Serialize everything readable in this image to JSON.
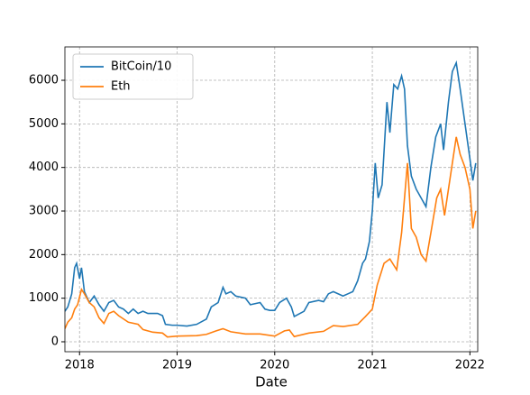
{
  "chart_data": {
    "type": "line",
    "x_label": "Date",
    "grid": true,
    "legend": "upper left",
    "xlim": [
      2017.85,
      2022.08
    ],
    "xticks": [
      2018,
      2019,
      2020,
      2021,
      2022
    ],
    "ylim": [
      -228,
      6766
    ],
    "yticks": [
      0,
      1000,
      2000,
      3000,
      4000,
      5000,
      6000
    ],
    "series": [
      {
        "name": "BitCoin/10",
        "color": "#1f77b4",
        "x": [
          2017.85,
          2017.88,
          2017.92,
          2017.95,
          2017.97,
          2018.0,
          2018.02,
          2018.05,
          2018.1,
          2018.15,
          2018.2,
          2018.25,
          2018.3,
          2018.35,
          2018.4,
          2018.45,
          2018.5,
          2018.55,
          2018.6,
          2018.65,
          2018.7,
          2018.8,
          2018.85,
          2018.88,
          2018.95,
          2019.0,
          2019.1,
          2019.2,
          2019.3,
          2019.35,
          2019.42,
          2019.47,
          2019.5,
          2019.55,
          2019.6,
          2019.7,
          2019.75,
          2019.85,
          2019.9,
          2019.95,
          2020.0,
          2020.05,
          2020.12,
          2020.17,
          2020.2,
          2020.3,
          2020.35,
          2020.45,
          2020.5,
          2020.55,
          2020.6,
          2020.7,
          2020.75,
          2020.8,
          2020.85,
          2020.9,
          2020.93,
          2020.97,
          2021.0,
          2021.03,
          2021.06,
          2021.1,
          2021.15,
          2021.18,
          2021.22,
          2021.26,
          2021.3,
          2021.33,
          2021.36,
          2021.4,
          2021.45,
          2021.5,
          2021.55,
          2021.6,
          2021.65,
          2021.7,
          2021.73,
          2021.78,
          2021.82,
          2021.86,
          2021.9,
          2021.95,
          2022.0,
          2022.03,
          2022.06
        ],
        "values": [
          700,
          800,
          1100,
          1700,
          1800,
          1450,
          1700,
          1150,
          900,
          1050,
          850,
          700,
          900,
          950,
          800,
          750,
          650,
          750,
          650,
          700,
          650,
          650,
          600,
          400,
          380,
          380,
          360,
          400,
          520,
          800,
          900,
          1250,
          1100,
          1150,
          1050,
          1000,
          850,
          900,
          750,
          720,
          720,
          900,
          1000,
          800,
          580,
          700,
          900,
          950,
          920,
          1100,
          1150,
          1050,
          1100,
          1150,
          1400,
          1800,
          1900,
          2300,
          3000,
          4100,
          3300,
          3600,
          5500,
          4800,
          5900,
          5800,
          6100,
          5800,
          4500,
          3800,
          3500,
          3300,
          3100,
          4000,
          4700,
          5000,
          4400,
          5500,
          6200,
          6400,
          5800,
          5000,
          4200,
          3700,
          4100
        ]
      },
      {
        "name": "Eth",
        "color": "#ff7f0e",
        "x": [
          2017.85,
          2017.88,
          2017.92,
          2017.95,
          2017.98,
          2018.02,
          2018.05,
          2018.1,
          2018.15,
          2018.2,
          2018.25,
          2018.3,
          2018.35,
          2018.4,
          2018.5,
          2018.6,
          2018.65,
          2018.75,
          2018.85,
          2018.9,
          2019.0,
          2019.2,
          2019.3,
          2019.4,
          2019.47,
          2019.55,
          2019.7,
          2019.85,
          2020.0,
          2020.1,
          2020.15,
          2020.2,
          2020.35,
          2020.5,
          2020.6,
          2020.7,
          2020.85,
          2020.93,
          2021.0,
          2021.05,
          2021.12,
          2021.18,
          2021.25,
          2021.3,
          2021.36,
          2021.4,
          2021.45,
          2021.5,
          2021.55,
          2021.6,
          2021.66,
          2021.7,
          2021.74,
          2021.8,
          2021.86,
          2021.9,
          2021.95,
          2022.0,
          2022.03,
          2022.06
        ],
        "values": [
          300,
          450,
          550,
          750,
          850,
          1200,
          1100,
          900,
          800,
          550,
          420,
          650,
          700,
          600,
          450,
          400,
          280,
          220,
          200,
          110,
          130,
          140,
          170,
          250,
          300,
          230,
          180,
          180,
          130,
          250,
          270,
          120,
          200,
          240,
          370,
          350,
          400,
          580,
          750,
          1300,
          1800,
          1900,
          1650,
          2500,
          4100,
          2600,
          2400,
          2000,
          1850,
          2500,
          3300,
          3500,
          2900,
          3800,
          4700,
          4300,
          4000,
          3500,
          2600,
          3000
        ]
      }
    ]
  }
}
